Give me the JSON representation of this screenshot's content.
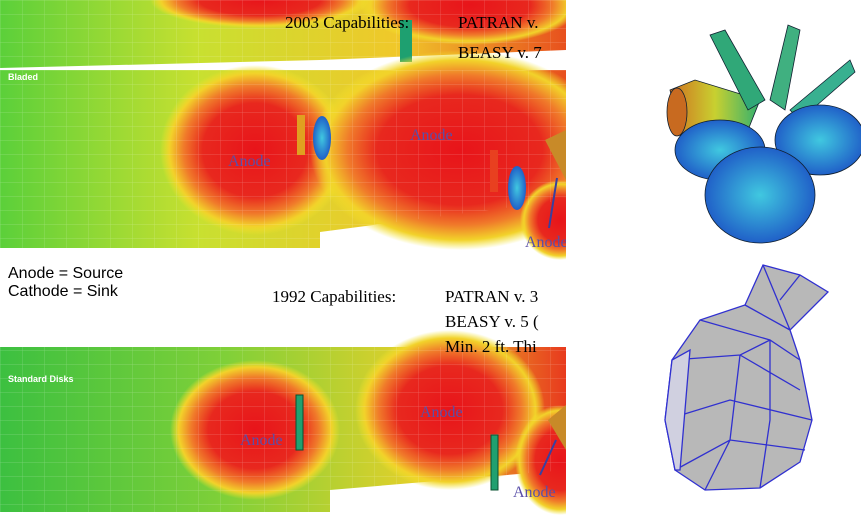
{
  "top_panel": {
    "capabilities_label": "2003 Capabilities:",
    "lines": [
      "PATRAN v.",
      "BEASY v. 7"
    ]
  },
  "bladed_panel": {
    "title": "Bladed",
    "anode_labels": [
      "Anode",
      "Anode",
      "Anode"
    ]
  },
  "legend": [
    "Anode = Source",
    "Cathode = Sink"
  ],
  "capabilities_1992": {
    "label": "1992 Capabilities:",
    "lines": [
      "PATRAN v. 3",
      "BEASY v. 5 (",
      "Min. 2 ft. Thi"
    ]
  },
  "disks_panel": {
    "title": "Standard Disks",
    "anode_labels": [
      "Anode",
      "Anode",
      "Anode"
    ]
  }
}
